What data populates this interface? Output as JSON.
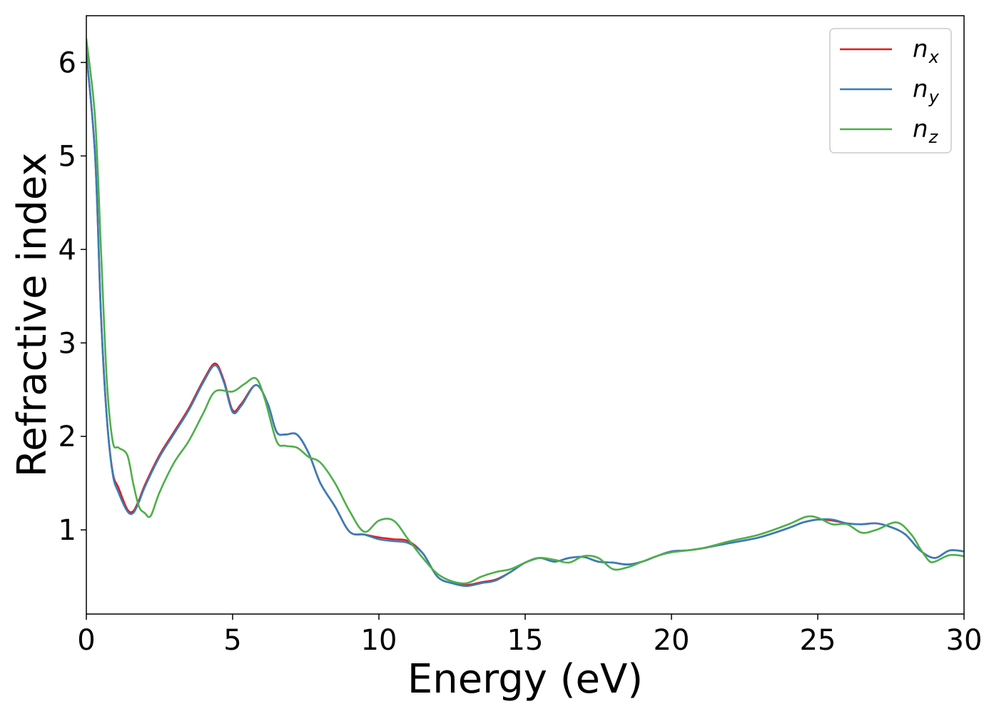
{
  "chart_data": {
    "type": "line",
    "xlabel": "Energy (eV)",
    "ylabel": "Refractive index",
    "xlim": [
      0,
      30
    ],
    "ylim": [
      0.1,
      6.5
    ],
    "x_ticks": [
      0,
      5,
      10,
      15,
      20,
      25,
      30
    ],
    "x_tick_labels": [
      "0",
      "5",
      "10",
      "15",
      "20",
      "25",
      "30"
    ],
    "y_ticks": [
      1,
      2,
      3,
      4,
      5,
      6
    ],
    "y_tick_labels": [
      "1",
      "2",
      "3",
      "4",
      "5",
      "6"
    ],
    "grid": false,
    "legend_position": "top-right",
    "series": [
      {
        "name": "n_x",
        "legend_base": "n",
        "legend_sub": "x",
        "color": "#e41a1c",
        "x": [
          0,
          0.3,
          0.5,
          0.7,
          0.9,
          1.1,
          1.4,
          1.6,
          1.8,
          2.0,
          2.5,
          3.0,
          3.5,
          4.0,
          4.4,
          4.7,
          5.0,
          5.3,
          5.8,
          6.2,
          6.5,
          6.8,
          7.2,
          7.6,
          8.0,
          8.5,
          9.0,
          9.5,
          10.0,
          10.5,
          11.0,
          11.5,
          12.0,
          12.5,
          13.0,
          13.5,
          14.0,
          14.5,
          15.0,
          15.5,
          16.0,
          16.5,
          17.0,
          17.5,
          18.0,
          18.5,
          19.0,
          19.5,
          20.0,
          20.5,
          21.0,
          22.0,
          23.0,
          24.0,
          24.5,
          25.0,
          25.5,
          26.0,
          26.5,
          27.0,
          27.5,
          28.0,
          28.5,
          29.0,
          29.5,
          30.0
        ],
        "y": [
          6.1,
          5.0,
          3.3,
          2.2,
          1.62,
          1.45,
          1.22,
          1.2,
          1.32,
          1.48,
          1.8,
          2.05,
          2.3,
          2.6,
          2.78,
          2.6,
          2.28,
          2.35,
          2.55,
          2.35,
          2.05,
          2.02,
          2.02,
          1.82,
          1.5,
          1.25,
          0.98,
          0.95,
          0.92,
          0.9,
          0.88,
          0.75,
          0.5,
          0.43,
          0.41,
          0.44,
          0.47,
          0.55,
          0.65,
          0.7,
          0.66,
          0.7,
          0.71,
          0.66,
          0.65,
          0.63,
          0.66,
          0.72,
          0.77,
          0.78,
          0.8,
          0.86,
          0.92,
          1.02,
          1.08,
          1.11,
          1.1,
          1.07,
          1.06,
          1.07,
          1.03,
          0.95,
          0.78,
          0.7,
          0.78,
          0.77
        ]
      },
      {
        "name": "n_y",
        "legend_base": "n",
        "legend_sub": "y",
        "color": "#377eb8",
        "x": [
          0,
          0.3,
          0.5,
          0.7,
          0.9,
          1.1,
          1.4,
          1.6,
          1.8,
          2.0,
          2.5,
          3.0,
          3.5,
          4.0,
          4.4,
          4.7,
          5.0,
          5.3,
          5.8,
          6.2,
          6.5,
          6.8,
          7.2,
          7.6,
          8.0,
          8.5,
          9.0,
          9.5,
          10.0,
          10.5,
          11.0,
          11.5,
          12.0,
          12.5,
          13.0,
          13.5,
          14.0,
          14.5,
          15.0,
          15.5,
          16.0,
          16.5,
          17.0,
          17.5,
          18.0,
          18.5,
          19.0,
          19.5,
          20.0,
          20.5,
          21.0,
          22.0,
          23.0,
          24.0,
          24.5,
          25.0,
          25.5,
          26.0,
          26.5,
          27.0,
          27.5,
          28.0,
          28.5,
          29.0,
          29.5,
          30.0
        ],
        "y": [
          6.1,
          5.0,
          3.3,
          2.2,
          1.6,
          1.4,
          1.2,
          1.18,
          1.3,
          1.46,
          1.78,
          2.03,
          2.28,
          2.58,
          2.76,
          2.58,
          2.26,
          2.33,
          2.55,
          2.35,
          2.05,
          2.02,
          2.02,
          1.82,
          1.5,
          1.25,
          0.98,
          0.95,
          0.9,
          0.88,
          0.86,
          0.75,
          0.5,
          0.43,
          0.4,
          0.43,
          0.46,
          0.55,
          0.65,
          0.7,
          0.66,
          0.7,
          0.71,
          0.66,
          0.65,
          0.63,
          0.66,
          0.72,
          0.77,
          0.78,
          0.8,
          0.86,
          0.92,
          1.02,
          1.08,
          1.11,
          1.11,
          1.07,
          1.06,
          1.07,
          1.03,
          0.95,
          0.78,
          0.7,
          0.78,
          0.77
        ]
      },
      {
        "name": "n_z",
        "legend_base": "n",
        "legend_sub": "z",
        "color": "#4daf4a",
        "x": [
          0,
          0.3,
          0.5,
          0.7,
          0.9,
          1.1,
          1.4,
          1.6,
          1.8,
          2.0,
          2.2,
          2.5,
          3.0,
          3.5,
          4.0,
          4.4,
          5.0,
          5.4,
          5.8,
          6.1,
          6.5,
          6.8,
          7.2,
          7.6,
          8.0,
          8.5,
          9.0,
          9.5,
          10.0,
          10.5,
          11.0,
          11.5,
          12.0,
          12.5,
          13.0,
          13.5,
          14.0,
          14.5,
          15.0,
          15.5,
          16.0,
          16.5,
          17.0,
          17.5,
          18.0,
          18.5,
          19.0,
          19.5,
          20.0,
          21.0,
          22.0,
          23.0,
          24.0,
          24.6,
          25.0,
          25.5,
          26.0,
          26.5,
          27.0,
          27.7,
          28.2,
          28.5,
          28.8,
          29.0,
          29.5,
          30.0
        ],
        "y": [
          6.25,
          5.4,
          4.0,
          2.6,
          1.95,
          1.88,
          1.8,
          1.5,
          1.25,
          1.18,
          1.15,
          1.4,
          1.72,
          1.95,
          2.25,
          2.48,
          2.48,
          2.56,
          2.62,
          2.4,
          1.95,
          1.9,
          1.88,
          1.78,
          1.72,
          1.5,
          1.2,
          0.98,
          1.1,
          1.1,
          0.9,
          0.7,
          0.53,
          0.45,
          0.43,
          0.5,
          0.55,
          0.58,
          0.65,
          0.7,
          0.68,
          0.65,
          0.72,
          0.7,
          0.58,
          0.6,
          0.66,
          0.72,
          0.76,
          0.8,
          0.88,
          0.95,
          1.06,
          1.14,
          1.13,
          1.06,
          1.06,
          0.97,
          1.0,
          1.08,
          0.95,
          0.8,
          0.67,
          0.66,
          0.73,
          0.72
        ]
      }
    ]
  }
}
